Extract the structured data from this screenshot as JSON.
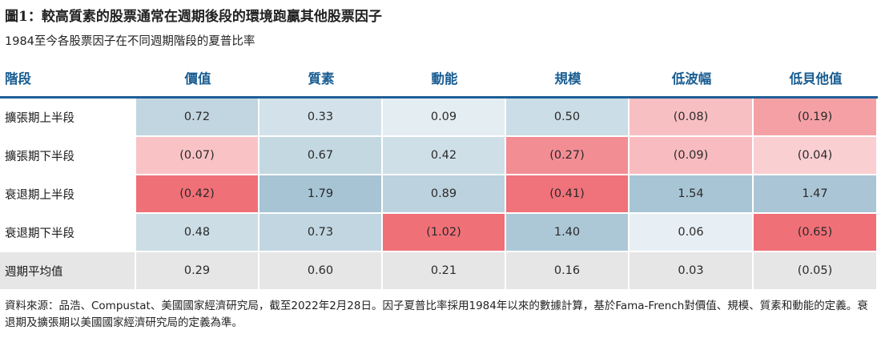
{
  "header": {
    "title": "圖1：較高質素的股票通常在週期後段的環境跑贏其他股票因子",
    "subtitle": "1984至今各股票因子在不同週期階段的夏普比率"
  },
  "chart_data": {
    "type": "table",
    "title": "圖1：較高質素的股票通常在週期後段的環境跑贏其他股票因子",
    "subtitle": "1984至今各股票因子在不同週期階段的夏普比率",
    "row_header_label": "階段",
    "columns": [
      "價值",
      "質素",
      "動能",
      "規模",
      "低波幅",
      "低貝他值"
    ],
    "rows": [
      {
        "label": "擴張期上半段",
        "values": [
          0.72,
          0.33,
          0.09,
          0.5,
          -0.08,
          -0.19
        ],
        "display": [
          "0.72",
          "0.33",
          "0.09",
          "0.50",
          "(0.08)",
          "(0.19)"
        ]
      },
      {
        "label": "擴張期下半段",
        "values": [
          -0.07,
          0.67,
          0.42,
          -0.27,
          -0.09,
          -0.04
        ],
        "display": [
          "(0.07)",
          "0.67",
          "0.42",
          "(0.27)",
          "(0.09)",
          "(0.04)"
        ]
      },
      {
        "label": "衰退期上半段",
        "values": [
          -0.42,
          1.79,
          0.89,
          -0.41,
          1.54,
          1.47
        ],
        "display": [
          "(0.42)",
          "1.79",
          "0.89",
          "(0.41)",
          "1.54",
          "1.47"
        ]
      },
      {
        "label": "衰退期下半段",
        "values": [
          0.48,
          0.73,
          -1.02,
          1.4,
          0.06,
          -0.65
        ],
        "display": [
          "0.48",
          "0.73",
          "(1.02)",
          "1.40",
          "0.06",
          "(0.65)"
        ]
      }
    ],
    "summary_row": {
      "label": "週期平均值",
      "values": [
        0.29,
        0.6,
        0.21,
        0.16,
        0.03,
        -0.05
      ],
      "display": [
        "0.29",
        "0.60",
        "0.21",
        "0.16",
        "0.03",
        "(0.05)"
      ]
    },
    "colors": {
      "header_text": "#1a5d92",
      "header_rule": "#1f5f97",
      "summary_bg": "#e6e6e6"
    }
  },
  "footer": {
    "source": "資料來源：品浩、Compustat、美國國家經濟研究局，截至2022年2月28日。因子夏普比率採用1984年以來的數據計算，基於Fama-French對價值、規模、質素和動能的定義。衰退期及擴張期以美國國家經濟研究局的定義為準。"
  }
}
